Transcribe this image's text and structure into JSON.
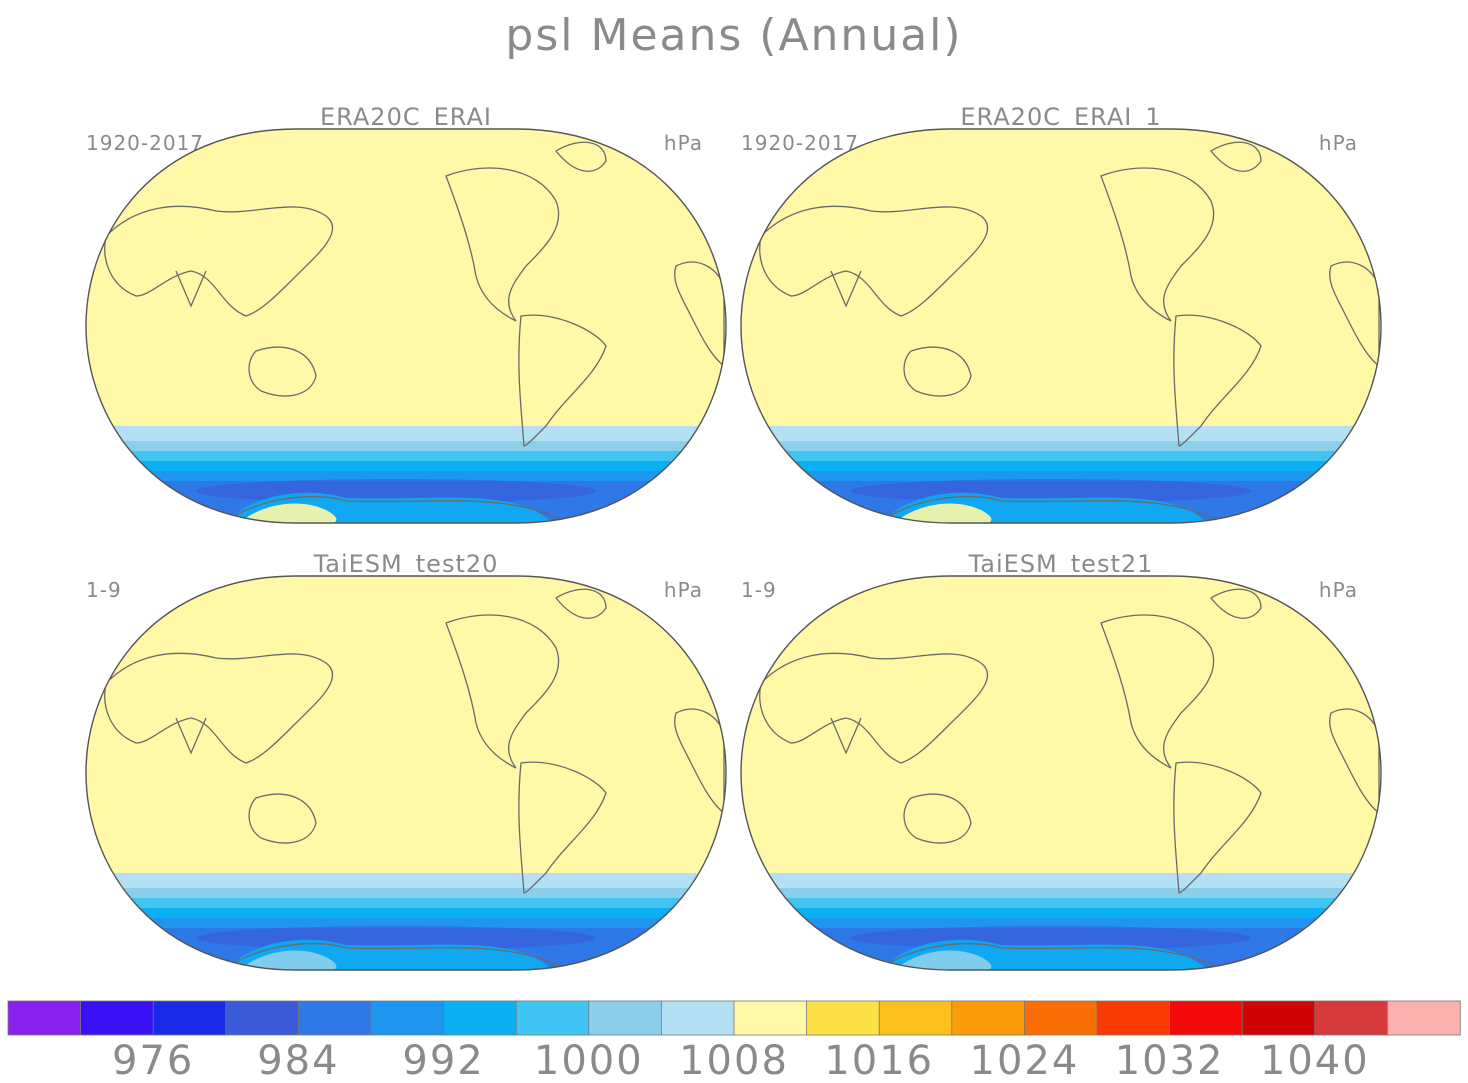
{
  "figure": {
    "title": "psl Means (Annual)"
  },
  "chart_data": [
    {
      "type": "heatmap",
      "title": "ERA20C_ERAI",
      "period": "1920-2017",
      "units": "hPa",
      "field": "sea level pressure (annual mean)",
      "projection": "Robinson, centered on Pacific"
    },
    {
      "type": "heatmap",
      "title": "ERA20C_ERAI_1",
      "period": "1920-2017",
      "units": "hPa",
      "field": "sea level pressure (annual mean)",
      "projection": "Robinson, centered on Pacific"
    },
    {
      "type": "heatmap",
      "title": "TaiESM_test20",
      "period": "1-9",
      "units": "hPa",
      "field": "sea level pressure (annual mean)",
      "projection": "Robinson, centered on Pacific"
    },
    {
      "type": "heatmap",
      "title": "TaiESM_test21",
      "period": "1-9",
      "units": "hPa",
      "field": "sea level pressure (annual mean)",
      "projection": "Robinson, centered on Pacific"
    }
  ],
  "colorbar": {
    "colors": [
      "#8a20ee",
      "#3a10f5",
      "#1a2ae8",
      "#3a5ad8",
      "#2e78e8",
      "#1e96f0",
      "#0ab0f2",
      "#40c4f2",
      "#8ccfeb",
      "#b4e0f4",
      "#fff8a6",
      "#fde046",
      "#fdbf1c",
      "#fb9c0a",
      "#fa6e06",
      "#f83a04",
      "#f50a0a",
      "#d00404",
      "#d63a3a",
      "#fcb0b0"
    ],
    "labels": [
      "976",
      "984",
      "992",
      "1000",
      "1008",
      "1016",
      "1024",
      "1032",
      "1040"
    ]
  }
}
